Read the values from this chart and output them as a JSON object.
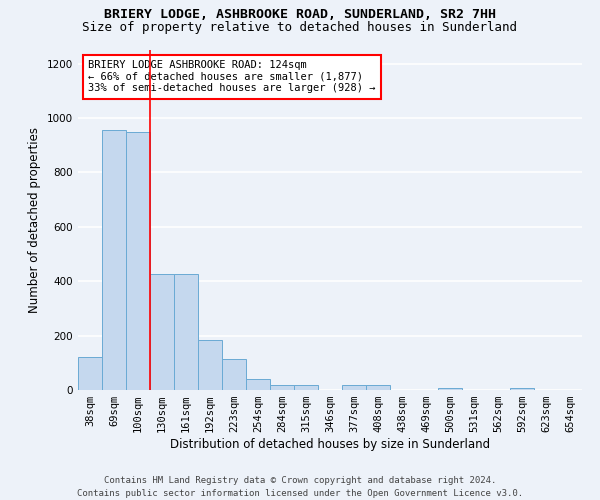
{
  "title1": "BRIERY LODGE, ASHBROOKE ROAD, SUNDERLAND, SR2 7HH",
  "title2": "Size of property relative to detached houses in Sunderland",
  "xlabel": "Distribution of detached houses by size in Sunderland",
  "ylabel": "Number of detached properties",
  "categories": [
    "38sqm",
    "69sqm",
    "100sqm",
    "130sqm",
    "161sqm",
    "192sqm",
    "223sqm",
    "254sqm",
    "284sqm",
    "315sqm",
    "346sqm",
    "377sqm",
    "408sqm",
    "438sqm",
    "469sqm",
    "500sqm",
    "531sqm",
    "562sqm",
    "592sqm",
    "623sqm",
    "654sqm"
  ],
  "values": [
    120,
    955,
    948,
    425,
    425,
    185,
    115,
    42,
    20,
    20,
    0,
    18,
    18,
    0,
    0,
    8,
    0,
    0,
    8,
    0,
    0
  ],
  "bar_color": "#c5d8ee",
  "bar_edge_color": "#6aaad4",
  "vline_x": 2.5,
  "annotation_text": "BRIERY LODGE ASHBROOKE ROAD: 124sqm\n← 66% of detached houses are smaller (1,877)\n33% of semi-detached houses are larger (928) →",
  "annotation_box_color": "white",
  "annotation_box_edge_color": "red",
  "vline_color": "red",
  "ylim": [
    0,
    1250
  ],
  "yticks": [
    0,
    200,
    400,
    600,
    800,
    1000,
    1200
  ],
  "footer": "Contains HM Land Registry data © Crown copyright and database right 2024.\nContains public sector information licensed under the Open Government Licence v3.0.",
  "background_color": "#edf2f9",
  "grid_color": "white",
  "title1_fontsize": 9.5,
  "title2_fontsize": 9,
  "axis_label_fontsize": 8.5,
  "tick_fontsize": 7.5,
  "annotation_fontsize": 7.5,
  "footer_fontsize": 6.5
}
